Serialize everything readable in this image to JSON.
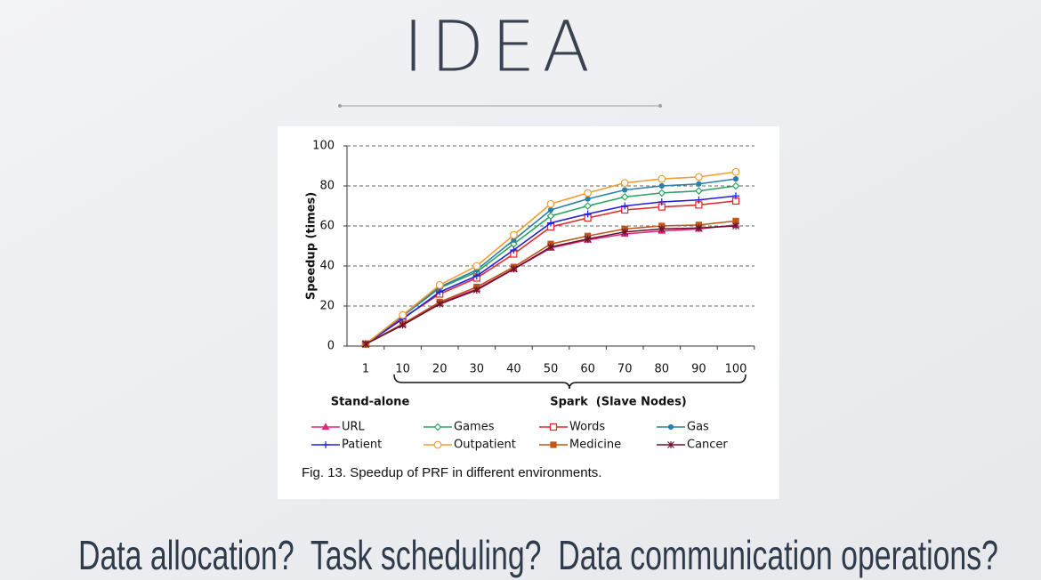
{
  "slide_title": "IDEA",
  "caption": "Fig. 13. Speedup of PRF in different environments.",
  "footer_text": "Data allocation?  Task scheduling?  Data communication operations?",
  "chart_data": {
    "type": "line",
    "y_label": "Speedup (times)",
    "group_labels": [
      "Stand-alone",
      "Spark  (Slave Nodes)"
    ],
    "categories": [
      "1",
      "10",
      "20",
      "30",
      "40",
      "50",
      "60",
      "70",
      "80",
      "90",
      "100"
    ],
    "ylim": [
      0,
      100
    ],
    "yticks": [
      0,
      20,
      40,
      60,
      80,
      100
    ],
    "grid": true,
    "series": [
      {
        "name": "URL",
        "color": "#e0287a",
        "marker": "triangle",
        "values": [
          1,
          11,
          21.5,
          28.5,
          38.5,
          49,
          53,
          56,
          57.5,
          58.5,
          60.5
        ]
      },
      {
        "name": "Games",
        "color": "#2ca25f",
        "marker": "diamond",
        "values": [
          1,
          15,
          29,
          37,
          51,
          65,
          70,
          74.5,
          76.5,
          77.5,
          80
        ]
      },
      {
        "name": "Words",
        "color": "#e3262a",
        "marker": "square-open",
        "values": [
          1,
          14,
          26,
          34,
          46,
          59.5,
          64,
          68,
          69.5,
          70.5,
          72.5
        ]
      },
      {
        "name": "Gas",
        "color": "#2d7fa8",
        "marker": "dot",
        "values": [
          1,
          15,
          29.5,
          38,
          53,
          68,
          73.5,
          78,
          80,
          81,
          83.5
        ]
      },
      {
        "name": "Patient",
        "color": "#1f1fe0",
        "marker": "plus",
        "values": [
          1,
          13.5,
          27,
          35,
          48,
          61.5,
          66,
          70,
          72,
          73,
          75
        ]
      },
      {
        "name": "Outpatient",
        "color": "#f39c34",
        "marker": "circle-open",
        "values": [
          1,
          15.5,
          30.5,
          40,
          55.5,
          71,
          76.5,
          81.5,
          83.5,
          84.5,
          87
        ]
      },
      {
        "name": "Medicine",
        "color": "#c0561a",
        "marker": "square",
        "values": [
          1,
          11,
          22,
          29.5,
          39.5,
          51,
          55,
          58.5,
          60,
          60.5,
          62.5
        ]
      },
      {
        "name": "Cancer",
        "color": "#6b1030",
        "marker": "star",
        "values": [
          1,
          10.5,
          21,
          28,
          38.5,
          49.5,
          53.5,
          57,
          58.5,
          59,
          60
        ]
      }
    ]
  }
}
